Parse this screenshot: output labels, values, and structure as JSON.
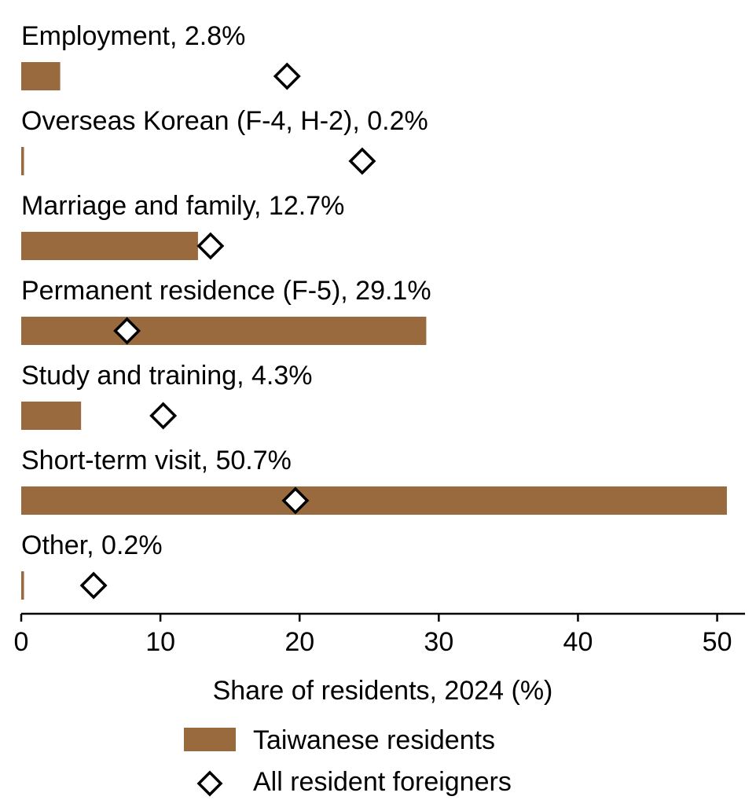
{
  "chart_data": {
    "type": "bar",
    "orientation": "horizontal",
    "categories": [
      "Employment",
      "Overseas Korean (F-4, H-2)",
      "Marriage and family",
      "Permanent residence (F-5)",
      "Study and training",
      "Short-term visit",
      "Other"
    ],
    "category_labels": [
      "Employment, 2.8%",
      "Overseas Korean (F-4, H-2), 0.2%",
      "Marriage and family, 12.7%",
      "Permanent residence (F-5), 29.1%",
      "Study and training, 4.3%",
      "Short-term visit, 50.7%",
      "Other, 0.2%"
    ],
    "series": [
      {
        "name": "Taiwanese residents",
        "mark": "bar",
        "color": "#9A6A3F",
        "values": [
          2.8,
          0.2,
          12.7,
          29.1,
          4.3,
          50.7,
          0.2
        ]
      },
      {
        "name": "All resident foreigners",
        "mark": "diamond",
        "color": "#000000",
        "values": [
          19.1,
          24.5,
          13.6,
          7.6,
          10.2,
          19.7,
          5.2
        ]
      }
    ],
    "xlabel": "Share of residents, 2024 (%)",
    "xlim": [
      0,
      52
    ],
    "xticks": [
      "0",
      "10",
      "20",
      "30",
      "40",
      "50"
    ],
    "legend_position": "bottom",
    "grid": false
  }
}
